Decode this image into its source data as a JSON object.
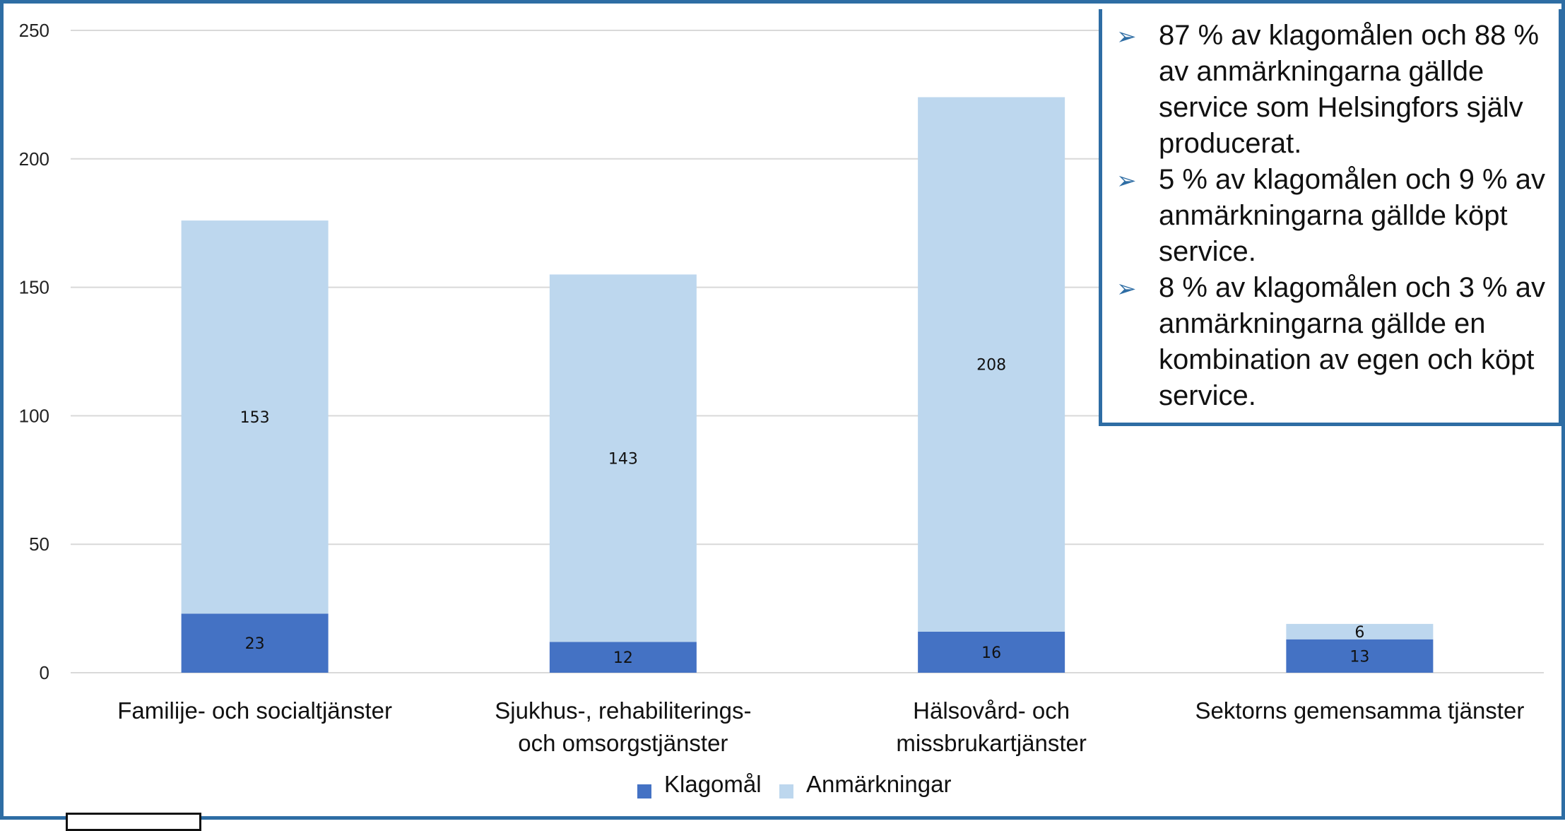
{
  "chart_data": {
    "type": "bar",
    "stacked": true,
    "categories": [
      "Familije- och socialtjänster",
      "Sjukhus-, rehabiliterings- och omsorgstjänster",
      "Hälsovård- och missbrukartjänster",
      "Sektorns gemensamma tjänster"
    ],
    "category_lines": [
      [
        "Familije- och socialtjänster"
      ],
      [
        "Sjukhus-, rehabiliterings-",
        "och omsorgstjänster"
      ],
      [
        "Hälsovård- och",
        "missbrukartjänster"
      ],
      [
        "Sektorns gemensamma tjänster"
      ]
    ],
    "series": [
      {
        "name": "Klagomål",
        "values": [
          23,
          12,
          16,
          13
        ],
        "color": "#4472c4"
      },
      {
        "name": "Anmärkningar",
        "values": [
          153,
          143,
          208,
          6
        ],
        "color": "#bdd7ee"
      }
    ],
    "ylim": [
      0,
      250
    ],
    "yticks": [
      0,
      50,
      100,
      150,
      200,
      250
    ],
    "grid": true,
    "legend": "bottom-center",
    "title": "",
    "xlabel": "",
    "ylabel": ""
  },
  "notes": [
    "87 % av klagomålen och 88 % av anmärkningarna gällde service som Helsingfors själv producerat.",
    "5 % av klagomålen och 9 % av anmärkningarna gällde köpt service.",
    "8 % av klagomålen och 3 % av anmärkningarna gällde en kombination av egen och köpt service."
  ],
  "colors": {
    "border": "#2e6da4",
    "grid": "#d9d9d9"
  }
}
